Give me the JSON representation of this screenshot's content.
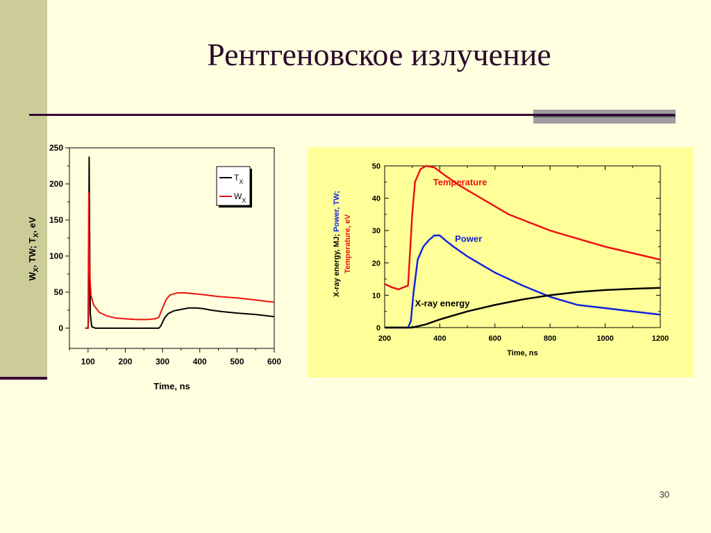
{
  "slide": {
    "title": "Рентгеновское излучение",
    "page_number": "30"
  },
  "colors": {
    "background": "#ffffe0",
    "left_strip": "#cccc99",
    "accent_dark": "#330033",
    "chart2_background": "#ffff99",
    "black_series": "#000000",
    "red_series": "#ee1111",
    "blue_series": "#1122dd"
  },
  "chart_data": [
    {
      "type": "line",
      "title": "",
      "xlabel": "Time, ns",
      "ylabel_parts": [
        "W",
        "X",
        ", TW;  T",
        "X",
        ", eV"
      ],
      "xlim": [
        50,
        600
      ],
      "ylim": [
        -28,
        250
      ],
      "x_ticks": [
        100,
        200,
        300,
        400,
        500,
        600
      ],
      "y_ticks": [
        0,
        50,
        100,
        150,
        200,
        250
      ],
      "legend_position": "top-right",
      "series": [
        {
          "name": "T",
          "name_sub": "X",
          "color": "#000000",
          "points": [
            [
              92,
              0
            ],
            [
              100,
              0
            ],
            [
              101,
              10
            ],
            [
              102,
              120
            ],
            [
              103,
              238
            ],
            [
              104,
              140
            ],
            [
              106,
              20
            ],
            [
              110,
              2
            ],
            [
              120,
              0
            ],
            [
              200,
              0
            ],
            [
              280,
              0
            ],
            [
              290,
              0
            ],
            [
              295,
              3
            ],
            [
              300,
              8
            ],
            [
              305,
              14
            ],
            [
              315,
              20
            ],
            [
              330,
              24
            ],
            [
              350,
              26
            ],
            [
              370,
              28
            ],
            [
              390,
              28
            ],
            [
              410,
              27
            ],
            [
              430,
              25
            ],
            [
              460,
              23
            ],
            [
              500,
              21
            ],
            [
              550,
              19
            ],
            [
              600,
              16
            ]
          ]
        },
        {
          "name": "W",
          "name_sub": "X",
          "color": "#ee1111",
          "points": [
            [
              92,
              0
            ],
            [
              99,
              0
            ],
            [
              100,
              5
            ],
            [
              101,
              100
            ],
            [
              102,
              188
            ],
            [
              103,
              120
            ],
            [
              105,
              70
            ],
            [
              108,
              45
            ],
            [
              115,
              32
            ],
            [
              130,
              22
            ],
            [
              150,
              17
            ],
            [
              175,
              14
            ],
            [
              200,
              13
            ],
            [
              230,
              12
            ],
            [
              260,
              12
            ],
            [
              280,
              13
            ],
            [
              290,
              15
            ],
            [
              300,
              28
            ],
            [
              310,
              40
            ],
            [
              320,
              46
            ],
            [
              340,
              49
            ],
            [
              360,
              49
            ],
            [
              380,
              48
            ],
            [
              400,
              47
            ],
            [
              450,
              44
            ],
            [
              500,
              42
            ],
            [
              550,
              39
            ],
            [
              600,
              36
            ]
          ]
        }
      ]
    },
    {
      "type": "line",
      "title": "",
      "xlabel": "Time, ns",
      "ylabel_parts": [
        {
          "text": "X-ray energy, MJ; ",
          "color": "#000000"
        },
        {
          "text": "Power, TW;",
          "color": "#1122dd"
        }
      ],
      "ylabel_line2": {
        "text": "Temperature, eV",
        "color": "#ee1111"
      },
      "xlim": [
        200,
        1200
      ],
      "ylim": [
        0,
        50
      ],
      "x_ticks": [
        200,
        400,
        600,
        800,
        1000,
        1200
      ],
      "y_ticks": [
        0,
        10,
        20,
        30,
        40,
        50
      ],
      "series": [
        {
          "name": "Temperature",
          "color": "#ee1111",
          "label_at": [
            280,
            44
          ],
          "points": [
            [
              200,
              13.5
            ],
            [
              225,
              12.5
            ],
            [
              250,
              11.8
            ],
            [
              270,
              12.5
            ],
            [
              285,
              13
            ],
            [
              300,
              35
            ],
            [
              310,
              45
            ],
            [
              330,
              49
            ],
            [
              350,
              50
            ],
            [
              380,
              49.5
            ],
            [
              420,
              47
            ],
            [
              470,
              44
            ],
            [
              550,
              40
            ],
            [
              650,
              35
            ],
            [
              800,
              30
            ],
            [
              1000,
              25
            ],
            [
              1200,
              21
            ]
          ]
        },
        {
          "name": "Power",
          "color": "#1122dd",
          "label_at": [
            455,
            26.5
          ],
          "points": [
            [
              200,
              0
            ],
            [
              285,
              0
            ],
            [
              295,
              2
            ],
            [
              305,
              11
            ],
            [
              320,
              21
            ],
            [
              340,
              25
            ],
            [
              360,
              27
            ],
            [
              380,
              28.5
            ],
            [
              400,
              28.5
            ],
            [
              420,
              27
            ],
            [
              450,
              25
            ],
            [
              500,
              22
            ],
            [
              550,
              19.5
            ],
            [
              600,
              17
            ],
            [
              700,
              13
            ],
            [
              800,
              9.5
            ],
            [
              900,
              7
            ],
            [
              1000,
              6
            ],
            [
              1100,
              5
            ],
            [
              1200,
              4
            ]
          ]
        },
        {
          "name": "X-ray energy",
          "color": "#000000",
          "label_at": [
            310,
            6.5
          ],
          "points": [
            [
              200,
              0
            ],
            [
              300,
              0
            ],
            [
              350,
              1
            ],
            [
              400,
              2.5
            ],
            [
              500,
              5
            ],
            [
              600,
              7
            ],
            [
              700,
              8.7
            ],
            [
              800,
              10
            ],
            [
              900,
              11
            ],
            [
              1000,
              11.6
            ],
            [
              1100,
              12
            ],
            [
              1200,
              12.3
            ]
          ]
        }
      ]
    }
  ]
}
